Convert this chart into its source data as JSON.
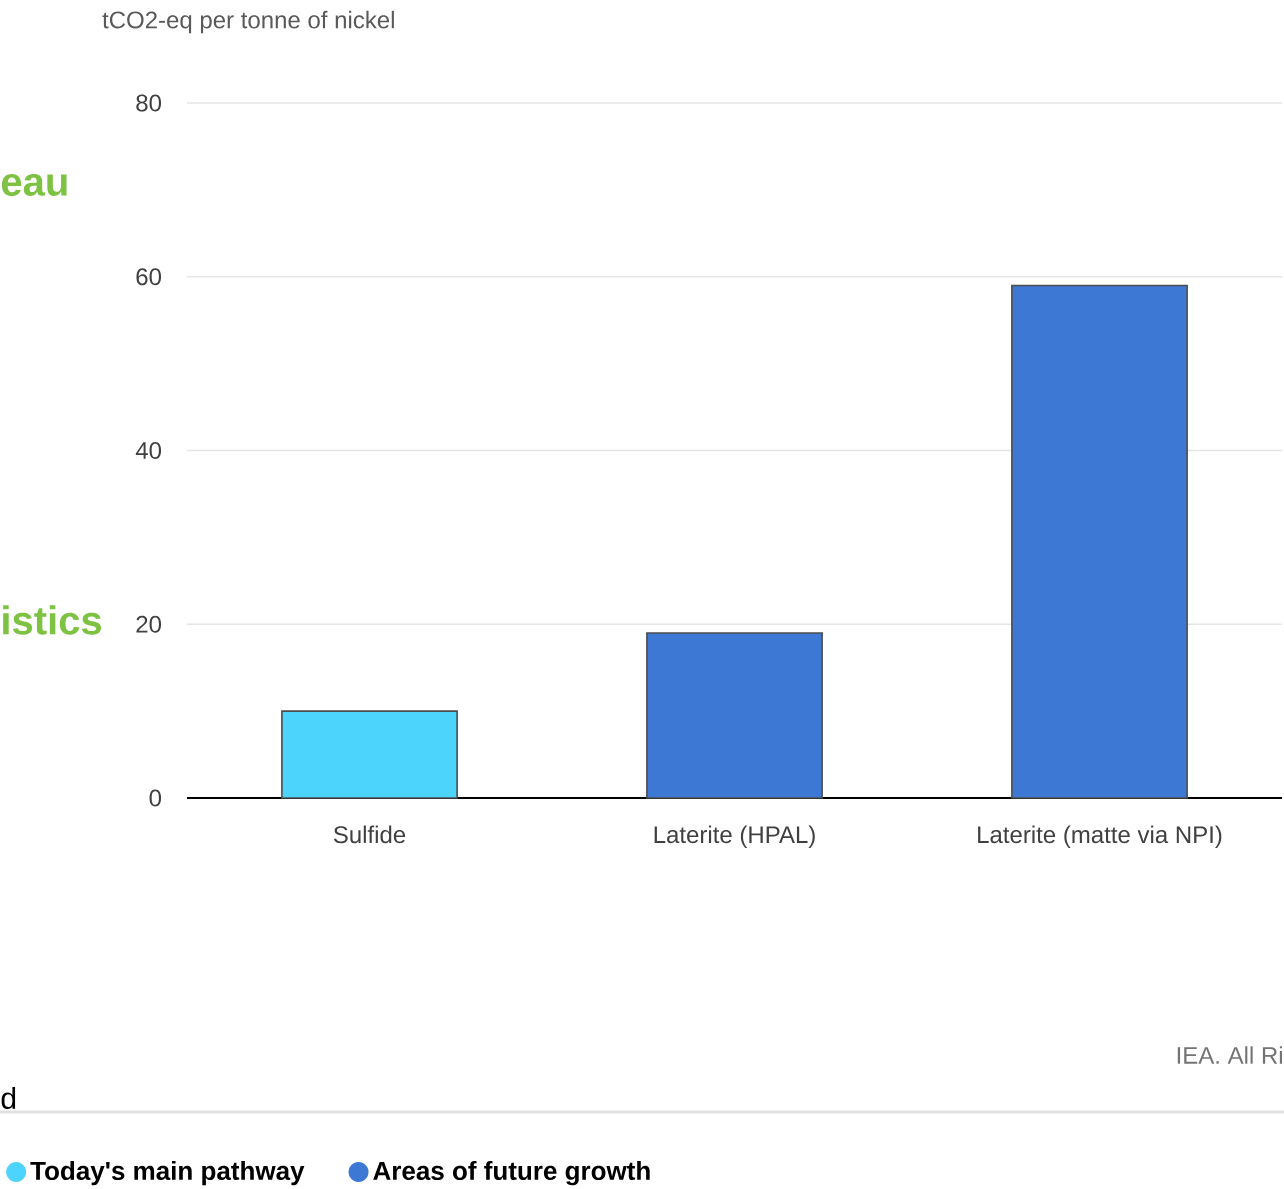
{
  "chart_data": {
    "type": "bar",
    "ylabel": "tCO2-eq per tonne of nickel",
    "categories": [
      "Sulfide",
      "Laterite (HPAL)",
      "Laterite (matte via NPI)"
    ],
    "series": [
      {
        "name": "Today's main pathway",
        "color": "#4dd4fc",
        "values": [
          10,
          null,
          null
        ]
      },
      {
        "name": "Areas of future growth",
        "color": "#3d78d4",
        "values": [
          null,
          19,
          59
        ]
      }
    ],
    "ylim": [
      0,
      80
    ],
    "yticks": [
      0,
      20,
      40,
      60,
      80
    ],
    "grid": "y",
    "legend": "bottom",
    "annotations": [
      "IEA. All Ri",
      "eau",
      "istics",
      "d"
    ]
  }
}
